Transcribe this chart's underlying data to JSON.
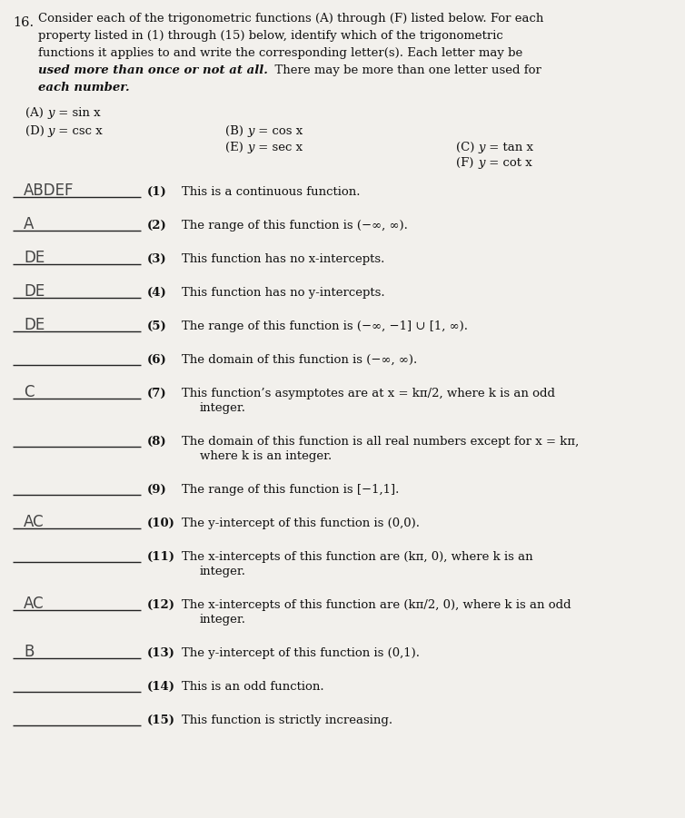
{
  "bg_color": "#e8e5e0",
  "page_bg": "#f2f0ec",
  "title_number": "16.",
  "intro_text_lines": [
    "Consider each of the trigonometric functions (A) through (F) listed below. For each",
    "property listed in (1) through (15) below, identify which of the trigonometric",
    "functions it applies to and write the corresponding letter(s). Each letter may be",
    "used more than once or not at all.  There may be more than one letter used for",
    "each number."
  ],
  "func_col1": [
    "(A)  y = sin x",
    "(D)  y = csc x"
  ],
  "func_col2": [
    "(B)  y = cos x",
    "(E)  y = sec x"
  ],
  "func_col3": [
    "(C)  y = tan x",
    "(F)  y = cot x"
  ],
  "items": [
    {
      "answer": "ABDEF",
      "num": "(1)",
      "text": "This is a continuous function.",
      "wrap": false
    },
    {
      "answer": "A",
      "num": "(2)",
      "text": "The range of this function is (−∞, ∞).",
      "wrap": false
    },
    {
      "answer": "DE",
      "num": "(3)",
      "text": "This function has no x-intercepts.",
      "wrap": false
    },
    {
      "answer": "DE",
      "num": "(4)",
      "text": "This function has no y-intercepts.",
      "wrap": false
    },
    {
      "answer": "DE",
      "num": "(5)",
      "text": "The range of this function is (−∞, −1] ∪ [1, ∞).",
      "wrap": false
    },
    {
      "answer": "",
      "num": "(6)",
      "text": "The domain of this function is (−∞, ∞).",
      "wrap": false
    },
    {
      "answer": "C",
      "num": "(7)",
      "text": "This function’s asymptotes are at x = kπ/2, where k is an odd integer.",
      "wrap": true
    },
    {
      "answer": "",
      "num": "(8)",
      "text": "The domain of this function is all real numbers except for x = kπ, where k is an integer.",
      "wrap": true
    },
    {
      "answer": "",
      "num": "(9)",
      "text": "The range of this function is [−1,1].",
      "wrap": false
    },
    {
      "answer": "AC",
      "num": "(10)",
      "text": "The y-intercept of this function is (0,0).",
      "wrap": false
    },
    {
      "answer": "",
      "num": "(11)",
      "text": "The x-intercepts of this function are (kπ, 0), where k is an integer.",
      "wrap": true
    },
    {
      "answer": "AC",
      "num": "(12)",
      "text": "The x-intercepts of this function are (kπ/2, 0), where k is an odd integer.",
      "wrap": true
    },
    {
      "answer": "B",
      "num": "(13)",
      "text": "The y-intercept of this function is (0,1).",
      "wrap": false
    },
    {
      "answer": "",
      "num": "(14)",
      "text": "This is an odd function.",
      "wrap": false
    },
    {
      "answer": "",
      "num": "(15)",
      "text": "This function is strictly increasing.",
      "wrap": false
    }
  ],
  "wrap_line2": {
    "(7)": "integer.",
    "(8)": "where k is an integer.",
    "(11)": "integer.",
    "(12)": "integer."
  },
  "wrap_line1": {
    "(7)": "This function’s asymptotes are at x = kπ/2, where k is an odd",
    "(8)": "The domain of this function is all real numbers except for x = kπ,",
    "(11)": "The x-intercepts of this function are (kπ, 0), where k is an",
    "(12)": "The x-intercepts of this function are (kπ/2, 0), where k is an odd"
  }
}
